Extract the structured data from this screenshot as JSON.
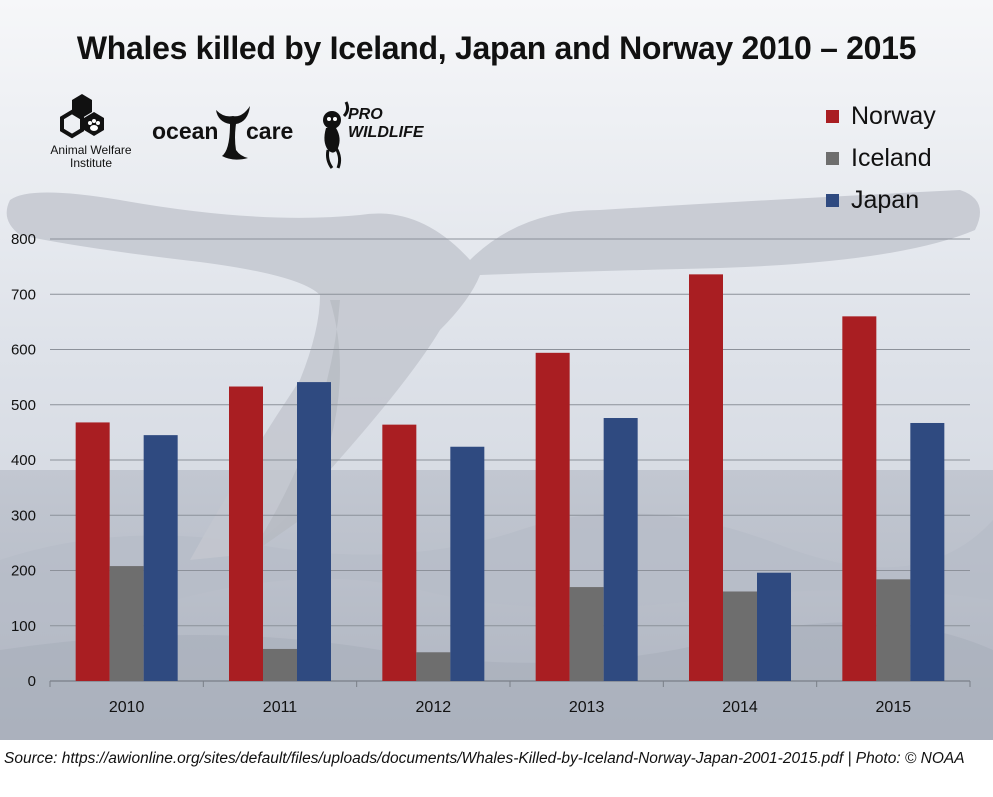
{
  "chart_data": {
    "type": "bar",
    "title": "Whales killed by Iceland, Japan and Norway 2010 – 2015",
    "categories": [
      "2010",
      "2011",
      "2012",
      "2013",
      "2014",
      "2015"
    ],
    "series": [
      {
        "name": "Norway",
        "color": "#a91e22",
        "values": [
          468,
          533,
          464,
          594,
          736,
          660
        ]
      },
      {
        "name": "Iceland",
        "color": "#6e6e6e",
        "values": [
          208,
          58,
          52,
          170,
          162,
          184
        ]
      },
      {
        "name": "Japan",
        "color": "#2f4a80",
        "values": [
          445,
          541,
          424,
          476,
          196,
          467
        ]
      }
    ],
    "xlabel": "",
    "ylabel": "",
    "ylim": [
      0,
      800
    ],
    "yticks": [
      "0",
      "100",
      "200",
      "300",
      "400",
      "500",
      "600",
      "700",
      "800"
    ],
    "grid": true,
    "legend_position": "top-right"
  },
  "logos": {
    "awi_line1": "Animal Welfare",
    "awi_line2": "Institute",
    "oceancare_left": "ocean",
    "oceancare_right": "care",
    "prowildlife_line1": "PRO",
    "prowildlife_line2": "WILDLIFE"
  },
  "source": "Source: https://awionline.org/sites/default/files/uploads/documents/Whales-Killed-by-Iceland-Norway-Japan-2001-2015.pdf | Photo: © NOAA"
}
